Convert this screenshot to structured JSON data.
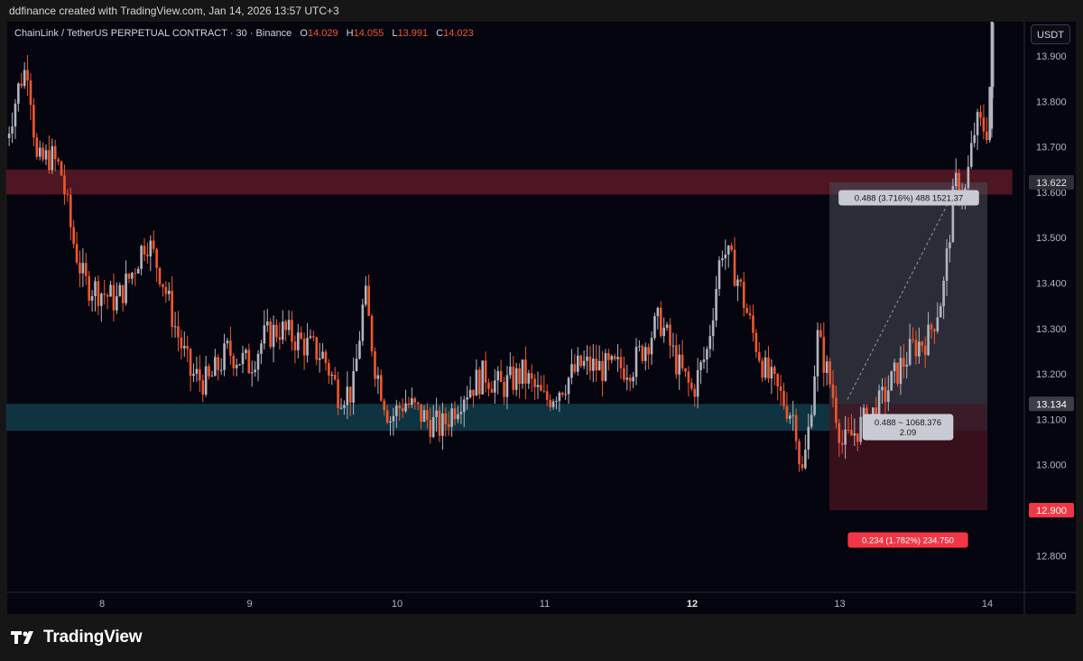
{
  "header": {
    "caption": "ddfinance created with TradingView.com, Jan 14, 2026 13:57 UTC+3"
  },
  "legend": {
    "symbol": "ChainLink / TetherUS PERPETUAL CONTRACT · 30 · Binance",
    "o_key": "O",
    "o_val": "14.029",
    "h_key": "H",
    "h_val": "14.055",
    "l_key": "L",
    "l_val": "13.991",
    "c_key": "C",
    "c_val": "14.023"
  },
  "toolbar": {
    "unit_label": "USDT"
  },
  "brand": {
    "name": "TradingView"
  },
  "colors": {
    "background": "#050510",
    "up_candle": "#b2b5be",
    "down_candle": "#f0582d",
    "resistance_zone": "#5a1a26",
    "support_zone": "#0f3a48",
    "profit_zone": "#4a4c58",
    "loss_zone": "#4a1420",
    "stop_label": "#f23645"
  },
  "chart_data": {
    "type": "candlestick",
    "timeframe": "30",
    "ylim": [
      12.73,
      13.98
    ],
    "y_ticks": [
      "13.900",
      "13.800",
      "13.700",
      "13.600",
      "13.500",
      "13.400",
      "13.300",
      "13.200",
      "13.100",
      "13.000",
      "12.800"
    ],
    "x_ticks": [
      {
        "label": "8",
        "bold": false,
        "day": 8
      },
      {
        "label": "9",
        "bold": false,
        "day": 9
      },
      {
        "label": "10",
        "bold": false,
        "day": 10
      },
      {
        "label": "11",
        "bold": false,
        "day": 11
      },
      {
        "label": "12",
        "bold": true,
        "day": 12
      },
      {
        "label": "13",
        "bold": false,
        "day": 13
      },
      {
        "label": "14",
        "bold": false,
        "day": 14
      }
    ],
    "x_domain_days": [
      7.35,
      14.2
    ],
    "zones": [
      {
        "name": "resistance",
        "from_day": 7.35,
        "to_day": 14.17,
        "y_low": 13.595,
        "y_high": 13.65
      },
      {
        "name": "support",
        "from_day": 7.35,
        "to_day": 14.0,
        "y_low": 13.075,
        "y_high": 13.134
      }
    ],
    "position": {
      "side": "long",
      "from_day": 12.93,
      "to_day": 14.0,
      "entry": 13.134,
      "target": 13.622,
      "stop": 12.9,
      "target_label": "0.488 (3.716%) 488 1521.37",
      "entry_label_1": "0.488 ~ 1068.376",
      "entry_label_2": "2.09",
      "stop_label": "0.234 (1.782%) 234.750"
    },
    "price_badges": [
      {
        "value": "13.622",
        "type": "target"
      },
      {
        "value": "13.134",
        "type": "entry"
      },
      {
        "value": "12.900",
        "type": "stop"
      }
    ],
    "path_points": [
      {
        "day": 7.35,
        "price": 13.72
      },
      {
        "day": 7.45,
        "price": 13.85
      },
      {
        "day": 7.5,
        "price": 13.88
      },
      {
        "day": 7.56,
        "price": 13.66
      },
      {
        "day": 7.65,
        "price": 13.68
      },
      {
        "day": 7.72,
        "price": 13.65
      },
      {
        "day": 7.8,
        "price": 13.5
      },
      {
        "day": 7.88,
        "price": 13.4
      },
      {
        "day": 8.0,
        "price": 13.38
      },
      {
        "day": 8.1,
        "price": 13.36
      },
      {
        "day": 8.2,
        "price": 13.42
      },
      {
        "day": 8.3,
        "price": 13.5
      },
      {
        "day": 8.4,
        "price": 13.42
      },
      {
        "day": 8.5,
        "price": 13.3
      },
      {
        "day": 8.6,
        "price": 13.2
      },
      {
        "day": 8.72,
        "price": 13.18
      },
      {
        "day": 8.85,
        "price": 13.25
      },
      {
        "day": 9.0,
        "price": 13.22
      },
      {
        "day": 9.1,
        "price": 13.28
      },
      {
        "day": 9.2,
        "price": 13.3
      },
      {
        "day": 9.35,
        "price": 13.27
      },
      {
        "day": 9.5,
        "price": 13.24
      },
      {
        "day": 9.6,
        "price": 13.16
      },
      {
        "day": 9.7,
        "price": 13.16
      },
      {
        "day": 9.78,
        "price": 13.38
      },
      {
        "day": 9.85,
        "price": 13.22
      },
      {
        "day": 9.95,
        "price": 13.1
      },
      {
        "day": 10.05,
        "price": 13.14
      },
      {
        "day": 10.2,
        "price": 13.1
      },
      {
        "day": 10.3,
        "price": 13.08
      },
      {
        "day": 10.45,
        "price": 13.16
      },
      {
        "day": 10.6,
        "price": 13.2
      },
      {
        "day": 10.7,
        "price": 13.17
      },
      {
        "day": 10.85,
        "price": 13.2
      },
      {
        "day": 11.0,
        "price": 13.14
      },
      {
        "day": 11.1,
        "price": 13.17
      },
      {
        "day": 11.25,
        "price": 13.22
      },
      {
        "day": 11.45,
        "price": 13.21
      },
      {
        "day": 11.6,
        "price": 13.22
      },
      {
        "day": 11.78,
        "price": 13.32
      },
      {
        "day": 11.9,
        "price": 13.22
      },
      {
        "day": 12.0,
        "price": 13.16
      },
      {
        "day": 12.1,
        "price": 13.25
      },
      {
        "day": 12.2,
        "price": 13.48
      },
      {
        "day": 12.3,
        "price": 13.42
      },
      {
        "day": 12.4,
        "price": 13.3
      },
      {
        "day": 12.5,
        "price": 13.2
      },
      {
        "day": 12.6,
        "price": 13.15
      },
      {
        "day": 12.7,
        "price": 13.1
      },
      {
        "day": 12.74,
        "price": 12.97
      },
      {
        "day": 12.78,
        "price": 13.05
      },
      {
        "day": 12.85,
        "price": 13.28
      },
      {
        "day": 12.95,
        "price": 13.16
      },
      {
        "day": 13.02,
        "price": 13.04
      },
      {
        "day": 13.12,
        "price": 13.08
      },
      {
        "day": 13.25,
        "price": 13.12
      },
      {
        "day": 13.38,
        "price": 13.2
      },
      {
        "day": 13.5,
        "price": 13.26
      },
      {
        "day": 13.6,
        "price": 13.28
      },
      {
        "day": 13.7,
        "price": 13.38
      },
      {
        "day": 13.78,
        "price": 13.62
      },
      {
        "day": 13.85,
        "price": 13.6
      },
      {
        "day": 13.92,
        "price": 13.75
      },
      {
        "day": 14.0,
        "price": 13.74
      },
      {
        "day": 14.05,
        "price": 14.02
      }
    ]
  }
}
